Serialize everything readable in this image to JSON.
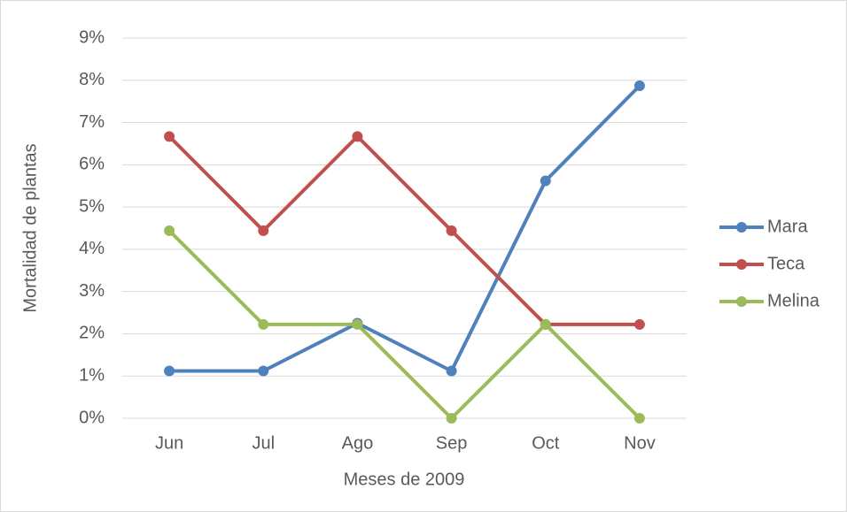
{
  "chart_data": {
    "type": "line",
    "x_label": "Meses de 2009",
    "y_label": "Mortalidad de plantas",
    "categories": [
      "Jun",
      "Jul",
      "Ago",
      "Sep",
      "Oct",
      "Nov"
    ],
    "series": [
      {
        "name": "Mara",
        "color": "#4f81bd",
        "values": [
          1.12,
          1.12,
          2.25,
          1.12,
          5.62,
          7.87
        ]
      },
      {
        "name": "Teca",
        "color": "#c0504d",
        "values": [
          6.67,
          4.44,
          6.67,
          4.44,
          2.22,
          2.22
        ]
      },
      {
        "name": "Melina",
        "color": "#9bbb59",
        "values": [
          4.44,
          2.22,
          2.22,
          0,
          2.22,
          0
        ]
      }
    ],
    "ylim": [
      0,
      9
    ],
    "yticks": [
      {
        "value": 0,
        "label": "0%"
      },
      {
        "value": 1,
        "label": "1%"
      },
      {
        "value": 2,
        "label": "2%"
      },
      {
        "value": 3,
        "label": "3%"
      },
      {
        "value": 4,
        "label": "4%"
      },
      {
        "value": 5,
        "label": "5%"
      },
      {
        "value": 6,
        "label": "6%"
      },
      {
        "value": 7,
        "label": "7%"
      },
      {
        "value": 8,
        "label": "8%"
      },
      {
        "value": 9,
        "label": "9%"
      }
    ],
    "grid": true,
    "legend": "right"
  }
}
